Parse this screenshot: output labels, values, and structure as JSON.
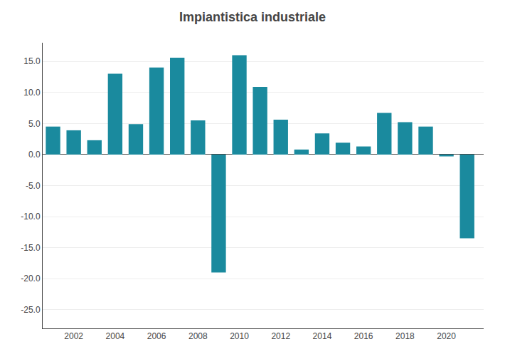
{
  "chart_data": {
    "type": "bar",
    "title": "Impiantistica industriale",
    "x": [
      2001,
      2002,
      2003,
      2004,
      2005,
      2006,
      2007,
      2008,
      2009,
      2010,
      2011,
      2012,
      2013,
      2014,
      2015,
      2016,
      2017,
      2018,
      2019,
      2020,
      2021
    ],
    "values": [
      4.5,
      3.9,
      2.3,
      13.0,
      4.9,
      14.0,
      15.6,
      5.5,
      -19.0,
      16.0,
      10.9,
      5.6,
      0.8,
      3.4,
      1.9,
      1.3,
      6.7,
      5.2,
      4.5,
      -0.3,
      -13.5
    ],
    "color": "#1a8a9e",
    "xlim": [
      2000.5,
      2021.8
    ],
    "xticks": [
      2002,
      2004,
      2006,
      2008,
      2010,
      2012,
      2014,
      2016,
      2018,
      2020
    ],
    "ylim": [
      -28,
      18
    ],
    "yticks": [
      {
        "value": -25,
        "label": "-25.0"
      },
      {
        "value": -20,
        "label": "-20.0"
      },
      {
        "value": -15,
        "label": "-15.0"
      },
      {
        "value": -10,
        "label": "-10.0"
      },
      {
        "value": -5,
        "label": "-5.0"
      },
      {
        "value": 0,
        "label": "0.0"
      },
      {
        "value": 5,
        "label": "5.0"
      },
      {
        "value": 10,
        "label": "10.0"
      },
      {
        "value": 15,
        "label": "15.0"
      }
    ],
    "grid": true
  }
}
